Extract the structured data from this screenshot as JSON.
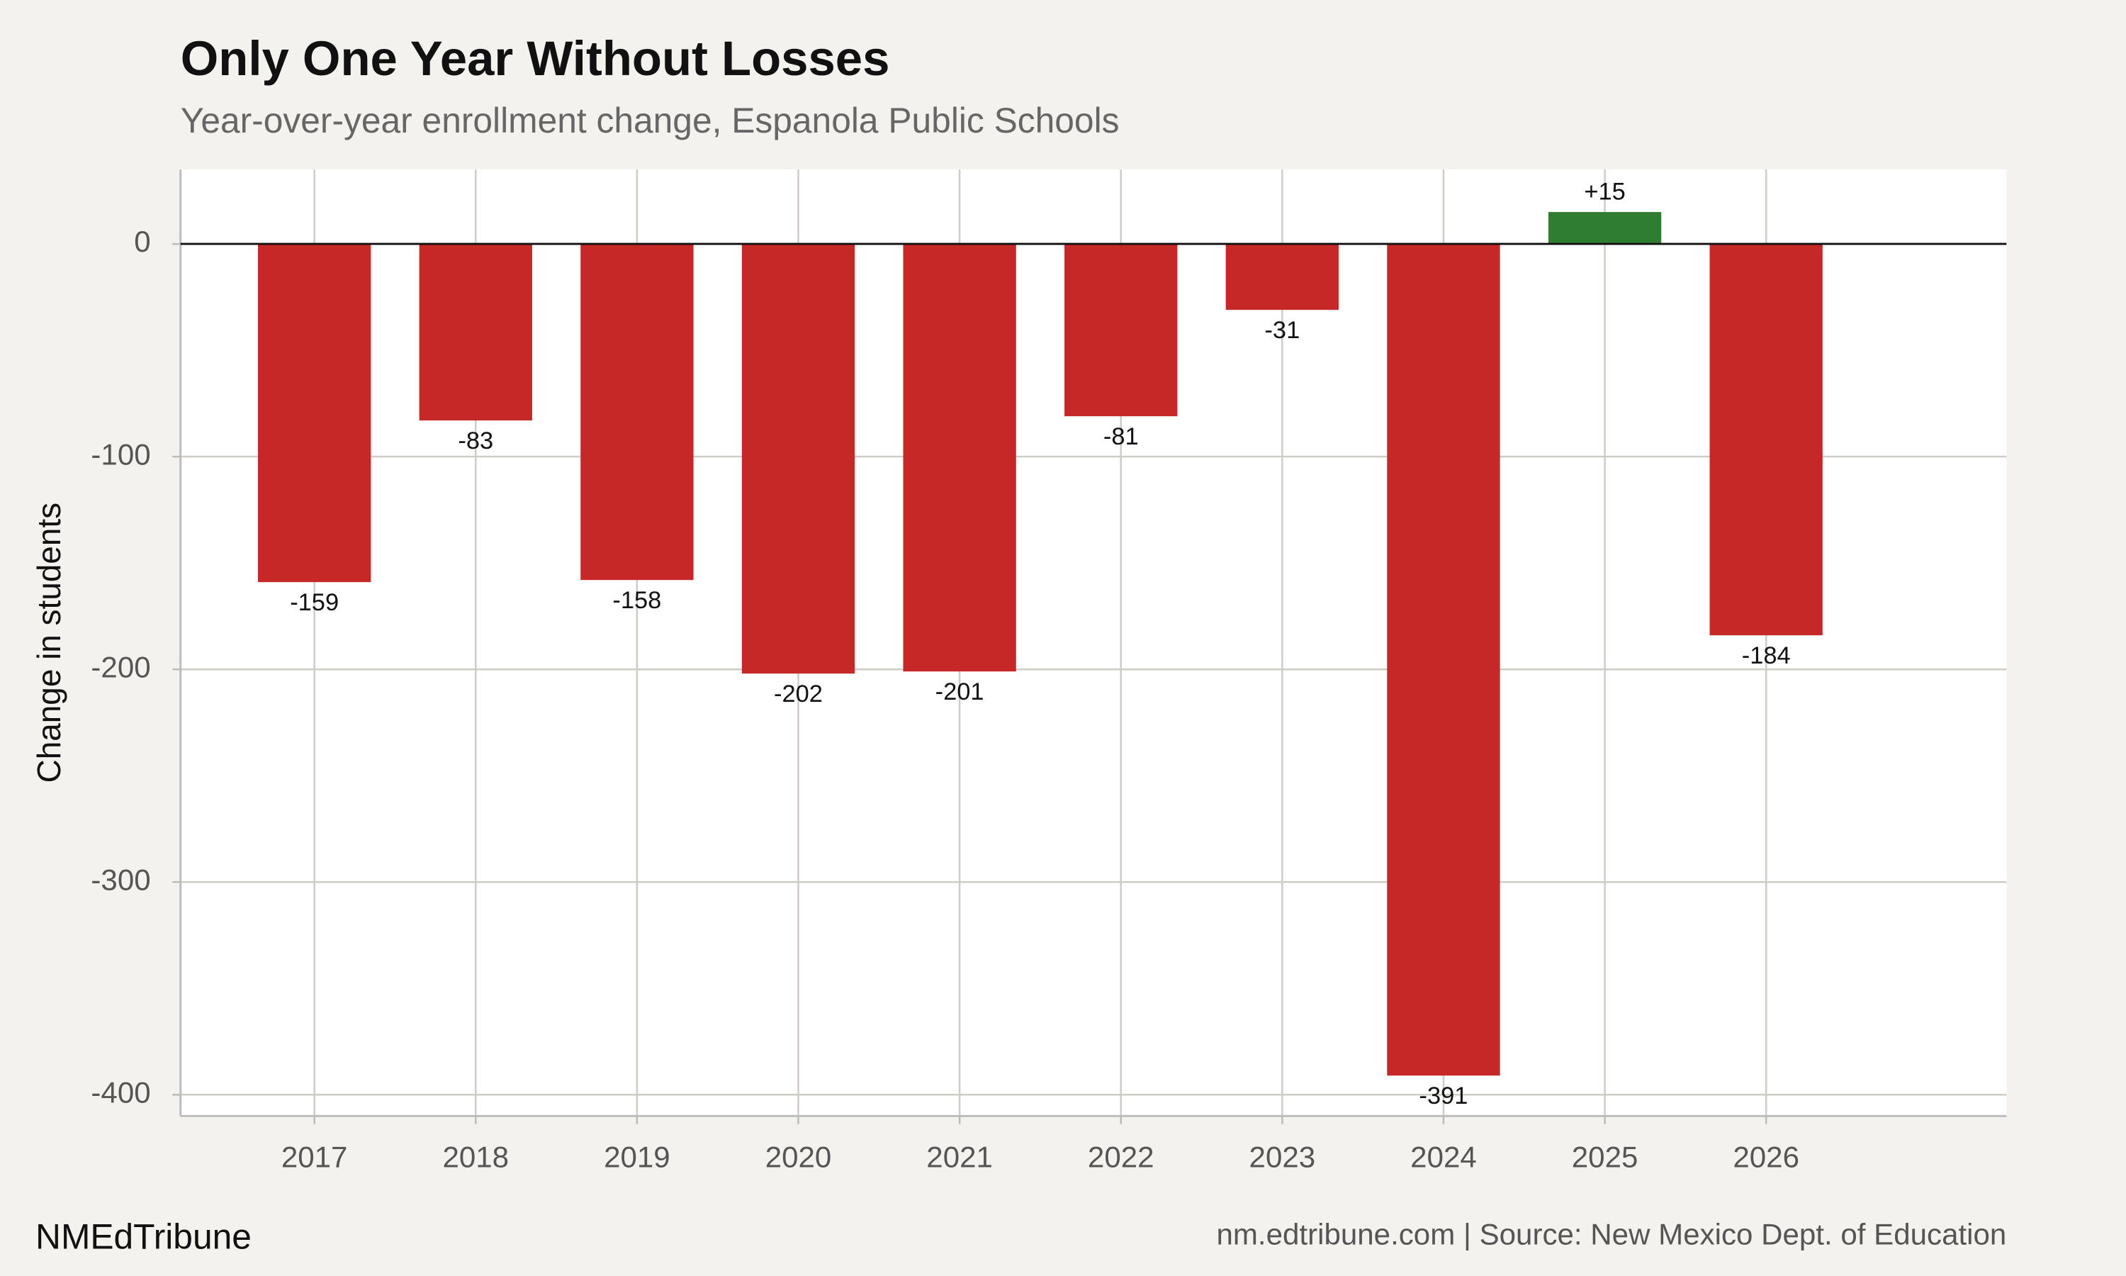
{
  "chart_data": {
    "type": "bar",
    "title": "Only One Year Without Losses",
    "subtitle": "Year-over-year enrollment change, Espanola Public Schools",
    "y_label": "Change in students",
    "brand": "NMEdTribune",
    "source": "nm.edtribune.com | Source: New Mexico Dept. of Education",
    "x": [
      2017,
      2018,
      2019,
      2020,
      2021,
      2022,
      2023,
      2024,
      2025,
      2026
    ],
    "values": [
      -159,
      -83,
      -158,
      -202,
      -201,
      -81,
      -31,
      -391,
      15,
      -184
    ],
    "value_labels": [
      "-159",
      "-83",
      "-158",
      "-202",
      "-201",
      "-81",
      "-31",
      "-391",
      "+15",
      "-184"
    ],
    "negative_color": "#c62828",
    "positive_color": "#2e7d32",
    "xlim": [
      2016.17,
      2027.49
    ],
    "xticks": [
      2017,
      2018,
      2019,
      2020,
      2021,
      2022,
      2023,
      2024,
      2025,
      2026
    ],
    "ylim": [
      -410,
      35
    ],
    "yticks": [
      0,
      -100,
      -200,
      -300,
      -400
    ],
    "grid": true
  }
}
